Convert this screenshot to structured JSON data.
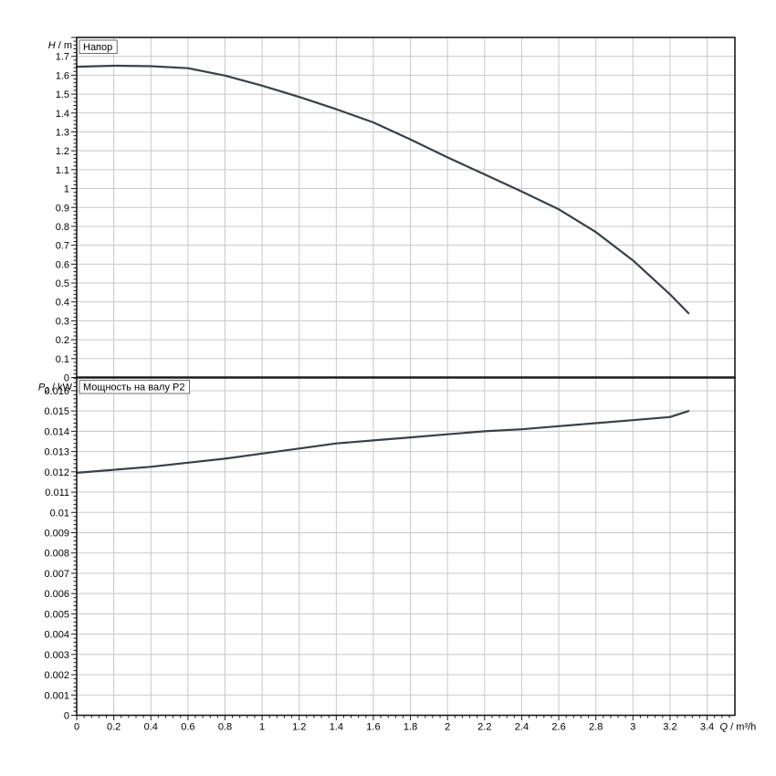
{
  "style": {
    "background": "#ffffff",
    "grid_color": "#c8c8c8",
    "frame_color": "#1b1b1b",
    "curve_color": "#394049",
    "text_color": "#000000",
    "panel_title_border": "#6f6f6f",
    "tick_font_px": 11
  },
  "x_axis": {
    "label": "Q / m³/h",
    "label_parts": {
      "var": "Q",
      "rest": " / m³/h"
    },
    "lim": [
      0,
      3.55
    ],
    "tick_step": 0.2,
    "minor_step": 0.04,
    "last_labeled_tick": 3.4,
    "tick_labels": [
      "0",
      "0.2",
      "0.4",
      "0.6",
      "0.8",
      "1",
      "1.2",
      "1.4",
      "1.6",
      "1.8",
      "2",
      "2.2",
      "2.4",
      "2.6",
      "2.8",
      "3",
      "3.2",
      "3.4"
    ]
  },
  "chart_data": [
    {
      "type": "line",
      "title": "Напор",
      "ylabel": "H / m",
      "ylabel_parts": {
        "var": "H",
        "sub": "",
        "rest": " / m"
      },
      "xlabel": "Q / m³/h",
      "ylim": [
        0,
        1.8
      ],
      "ytick_step": 0.1,
      "yminor_step": 0.02,
      "grid": true,
      "legend": "none",
      "x": [
        0,
        0.2,
        0.4,
        0.6,
        0.8,
        1,
        1.2,
        1.4,
        1.6,
        1.8,
        2,
        2.2,
        2.4,
        2.6,
        2.8,
        3,
        3.2,
        3.3
      ],
      "y": [
        1.645,
        1.65,
        1.648,
        1.637,
        1.598,
        1.545,
        1.485,
        1.42,
        1.35,
        1.26,
        1.165,
        1.075,
        0.985,
        0.89,
        0.77,
        0.62,
        0.44,
        0.34
      ]
    },
    {
      "type": "line",
      "title": "Мощность на валу P2",
      "ylabel": "P2 / kW",
      "ylabel_parts": {
        "var": "P",
        "sub": "2",
        "rest": " / kW"
      },
      "xlabel": "Q / m³/h",
      "ylim": [
        0,
        0.01665
      ],
      "ytick_step": 0.001,
      "yminor_step": 0.0002,
      "grid": true,
      "legend": "none",
      "x": [
        0,
        0.2,
        0.4,
        0.6,
        0.8,
        1,
        1.2,
        1.4,
        1.6,
        1.8,
        2,
        2.2,
        2.4,
        2.6,
        2.8,
        3,
        3.2,
        3.3
      ],
      "y": [
        0.01195,
        0.0121,
        0.01225,
        0.01245,
        0.01265,
        0.0129,
        0.01315,
        0.0134,
        0.01355,
        0.0137,
        0.01385,
        0.014,
        0.0141,
        0.01425,
        0.0144,
        0.01455,
        0.0147,
        0.015
      ]
    }
  ]
}
